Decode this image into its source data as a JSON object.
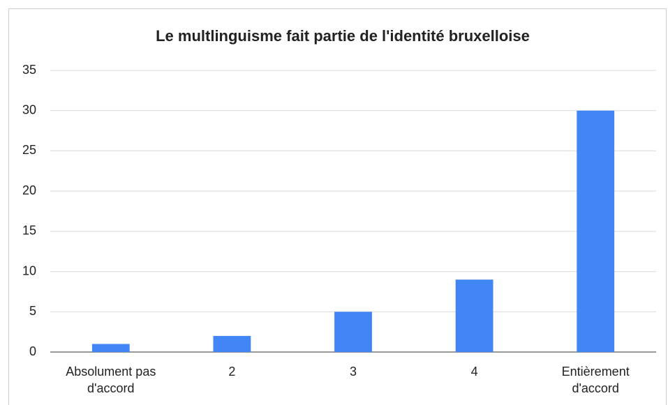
{
  "chart_data": {
    "type": "bar",
    "title": "Le multlinguisme fait partie de l'identité bruxelloise",
    "categories": [
      "Absolument pas d'accord",
      "2",
      "3",
      "4",
      "Entièrement d'accord"
    ],
    "values": [
      1,
      2,
      5,
      9,
      30
    ],
    "color": "#4285f4",
    "ylim": [
      0,
      35
    ],
    "yticks": [
      0,
      5,
      10,
      15,
      20,
      25,
      30,
      35
    ],
    "grid": true
  }
}
